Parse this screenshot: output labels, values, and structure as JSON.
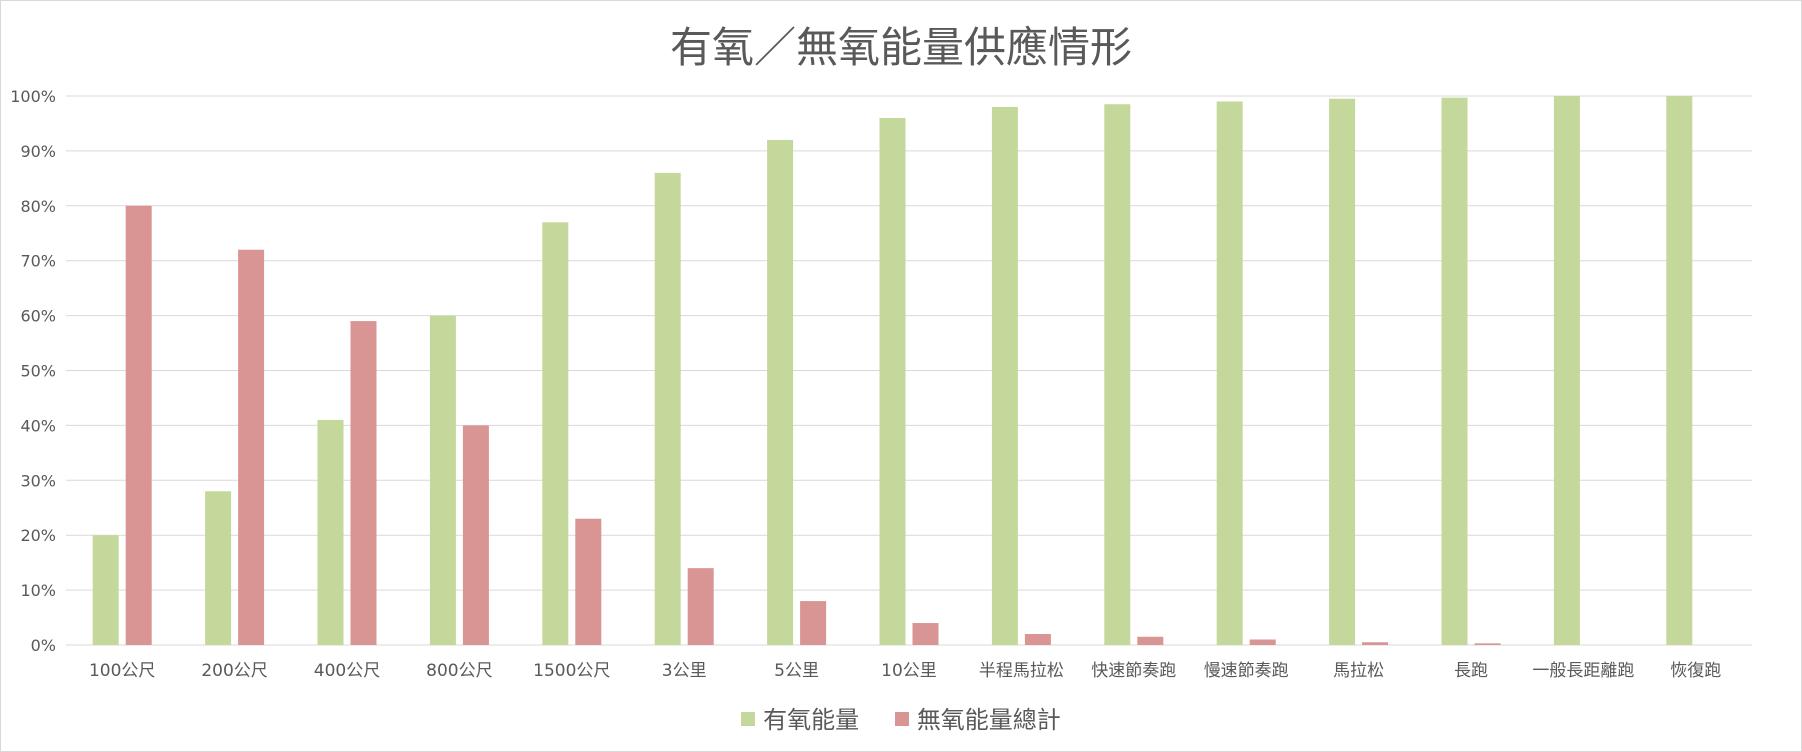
{
  "chart_data": {
    "type": "bar",
    "title": "有氧／無氧能量供應情形",
    "categories": [
      "100公尺",
      "200公尺",
      "400公尺",
      "800公尺",
      "1500公尺",
      "3公里",
      "5公里",
      "10公里",
      "半程馬拉松",
      "快速節奏跑",
      "慢速節奏跑",
      "馬拉松",
      "長跑",
      "一般長距離跑",
      "恢復跑"
    ],
    "series": [
      {
        "name": "有氧能量",
        "color": "#c4d89b",
        "values": [
          20,
          28,
          41,
          60,
          77,
          86,
          92,
          96,
          98,
          98.5,
          99,
          99.5,
          99.7,
          100,
          100
        ]
      },
      {
        "name": "無氧能量總計",
        "color": "#d99594",
        "values": [
          80,
          72,
          59,
          40,
          23,
          14,
          8,
          4,
          2,
          1.5,
          1,
          0.5,
          0.3,
          0,
          0
        ]
      }
    ],
    "ylim": [
      0,
      100
    ],
    "yticks": [
      "0%",
      "10%",
      "20%",
      "30%",
      "40%",
      "50%",
      "60%",
      "70%",
      "80%",
      "90%",
      "100%"
    ],
    "grid": true,
    "legend_position": "bottom"
  }
}
